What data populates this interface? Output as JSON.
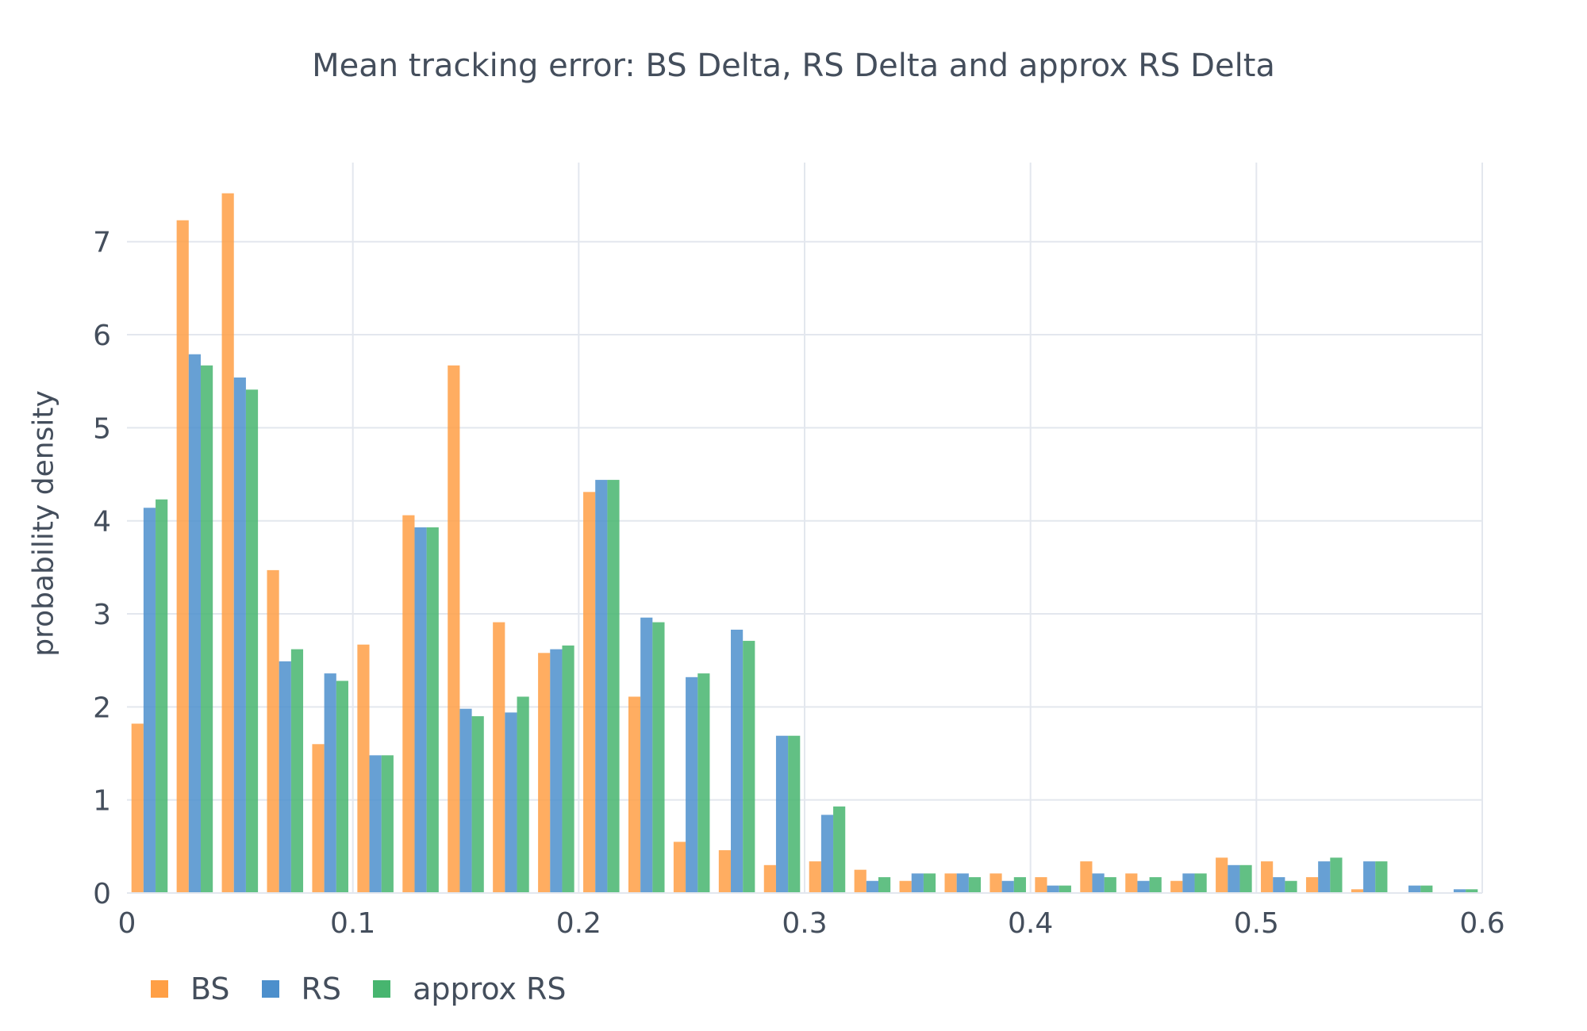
{
  "chart_data": {
    "type": "bar",
    "title": "Mean tracking error: BS Delta, RS Delta and approx RS Delta",
    "xlabel": "",
    "ylabel": "probability density",
    "xlim": [
      0,
      0.6
    ],
    "ylim": [
      0,
      7.85
    ],
    "xticks": [
      "0",
      "0.1",
      "0.2",
      "0.3",
      "0.4",
      "0.5",
      "0.6"
    ],
    "yticks": [
      "0",
      "1",
      "2",
      "3",
      "4",
      "5",
      "6",
      "7"
    ],
    "grid": true,
    "legend_position": "bottom-left",
    "bin_width": 0.02,
    "bin_starts": [
      0,
      0.02,
      0.04,
      0.06,
      0.08,
      0.1,
      0.12,
      0.14,
      0.16,
      0.18,
      0.2,
      0.22,
      0.24,
      0.26,
      0.28,
      0.3,
      0.32,
      0.34,
      0.36,
      0.38,
      0.4,
      0.42,
      0.44,
      0.46,
      0.48,
      0.5,
      0.52,
      0.54,
      0.56,
      0.58
    ],
    "series": [
      {
        "name": "BS",
        "color": "#ff9f45",
        "values": [
          1.82,
          7.23,
          7.52,
          3.47,
          1.6,
          2.67,
          4.06,
          5.67,
          2.91,
          2.58,
          4.31,
          2.11,
          0.55,
          0.46,
          0.3,
          0.34,
          0.25,
          0.13,
          0.21,
          0.21,
          0.17,
          0.34,
          0.21,
          0.13,
          0.38,
          0.34,
          0.17,
          0.04,
          0,
          0
        ]
      },
      {
        "name": "RS",
        "color": "#4c8fcc",
        "values": [
          4.14,
          5.79,
          5.54,
          2.49,
          2.36,
          1.48,
          3.93,
          1.98,
          1.94,
          2.62,
          4.44,
          2.96,
          2.32,
          2.83,
          1.69,
          0.84,
          0.13,
          0.21,
          0.21,
          0.13,
          0.08,
          0.21,
          0.13,
          0.21,
          0.3,
          0.17,
          0.34,
          0.34,
          0.08,
          0.04
        ]
      },
      {
        "name": "approx RS",
        "color": "#47b56f",
        "values": [
          4.23,
          5.67,
          5.41,
          2.62,
          2.28,
          1.48,
          3.93,
          1.9,
          2.11,
          2.66,
          4.44,
          2.91,
          2.36,
          2.71,
          1.69,
          0.93,
          0.17,
          0.21,
          0.17,
          0.17,
          0.08,
          0.17,
          0.17,
          0.21,
          0.3,
          0.13,
          0.38,
          0.34,
          0.08,
          0.04
        ]
      }
    ]
  }
}
